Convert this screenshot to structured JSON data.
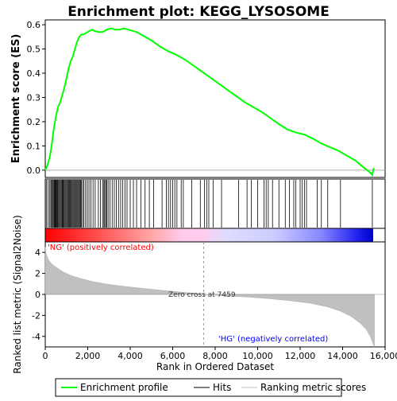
{
  "chart_data": {
    "type": "line",
    "title": "Enrichment plot: KEGG_LYSOSOME",
    "es_panel": {
      "ylabel": "Enrichment score (ES)",
      "ylim": [
        -0.03,
        0.62
      ],
      "yticks": [
        "0.0",
        "0.1",
        "0.2",
        "0.3",
        "0.4",
        "0.5",
        "0.6"
      ],
      "series": [
        {
          "name": "Enrichment profile",
          "color": "#00ff00",
          "points": [
            [
              0,
              0.0
            ],
            [
              100,
              0.02
            ],
            [
              200,
              0.05
            ],
            [
              300,
              0.1
            ],
            [
              400,
              0.17
            ],
            [
              500,
              0.22
            ],
            [
              600,
              0.26
            ],
            [
              700,
              0.28
            ],
            [
              800,
              0.31
            ],
            [
              900,
              0.34
            ],
            [
              1000,
              0.38
            ],
            [
              1100,
              0.42
            ],
            [
              1200,
              0.45
            ],
            [
              1300,
              0.47
            ],
            [
              1400,
              0.5
            ],
            [
              1500,
              0.53
            ],
            [
              1600,
              0.55
            ],
            [
              1700,
              0.56
            ],
            [
              1800,
              0.56
            ],
            [
              1900,
              0.565
            ],
            [
              2000,
              0.57
            ],
            [
              2100,
              0.575
            ],
            [
              2200,
              0.58
            ],
            [
              2300,
              0.575
            ],
            [
              2500,
              0.57
            ],
            [
              2700,
              0.57
            ],
            [
              2900,
              0.58
            ],
            [
              3100,
              0.585
            ],
            [
              3300,
              0.58
            ],
            [
              3500,
              0.58
            ],
            [
              3700,
              0.585
            ],
            [
              3900,
              0.58
            ],
            [
              4100,
              0.575
            ],
            [
              4300,
              0.57
            ],
            [
              4600,
              0.555
            ],
            [
              5000,
              0.535
            ],
            [
              5400,
              0.51
            ],
            [
              5800,
              0.49
            ],
            [
              6200,
              0.475
            ],
            [
              6600,
              0.455
            ],
            [
              7000,
              0.43
            ],
            [
              7400,
              0.405
            ],
            [
              7800,
              0.38
            ],
            [
              8200,
              0.355
            ],
            [
              8600,
              0.33
            ],
            [
              9000,
              0.305
            ],
            [
              9400,
              0.28
            ],
            [
              9800,
              0.26
            ],
            [
              10200,
              0.24
            ],
            [
              10600,
              0.215
            ],
            [
              11000,
              0.19
            ],
            [
              11400,
              0.168
            ],
            [
              11800,
              0.155
            ],
            [
              12200,
              0.147
            ],
            [
              12600,
              0.13
            ],
            [
              13000,
              0.11
            ],
            [
              13400,
              0.095
            ],
            [
              13800,
              0.08
            ],
            [
              14200,
              0.06
            ],
            [
              14600,
              0.04
            ],
            [
              15000,
              0.01
            ],
            [
              15300,
              -0.01
            ],
            [
              15400,
              -0.02
            ],
            [
              15450,
              0.005
            ],
            [
              15500,
              0.005
            ]
          ]
        }
      ]
    },
    "hits_panel": {
      "legend_label": "Hits",
      "positions": [
        50,
        130,
        200,
        260,
        300,
        340,
        380,
        420,
        450,
        480,
        510,
        540,
        570,
        600,
        640,
        680,
        720,
        760,
        800,
        830,
        860,
        900,
        940,
        980,
        1020,
        1060,
        1100,
        1140,
        1180,
        1220,
        1260,
        1300,
        1340,
        1380,
        1420,
        1460,
        1500,
        1540,
        1580,
        1620,
        1660,
        1700,
        1760,
        1820,
        1900,
        1980,
        2060,
        2150,
        2250,
        2350,
        2500,
        2600,
        2700,
        2760,
        2800,
        2850,
        2900,
        2960,
        3050,
        3150,
        3250,
        3350,
        3450,
        3550,
        3650,
        3750,
        3850,
        4000,
        4150,
        4300,
        4500,
        4700,
        4900,
        5100,
        5500,
        5700,
        5800,
        5900,
        6000,
        6100,
        6200,
        6400,
        6500,
        6900,
        7300,
        7500,
        7600,
        7700,
        7900,
        8300,
        9100,
        9500,
        9700,
        10000,
        10300,
        10400,
        10500,
        10700,
        11000,
        11300,
        11500,
        11700,
        11800,
        12000,
        12100,
        12200,
        12300,
        12800,
        13000,
        13300,
        13900,
        15400
      ]
    },
    "metric_panel": {
      "ylabel": "Ranked list metric (Signal2Noise)",
      "ylim": [
        -5,
        5
      ],
      "yticks": [
        "-4",
        "-2",
        "0",
        "2",
        "4"
      ],
      "legend_label": "Ranking metric scores",
      "zero_cross_label": "Zero cross at 7459",
      "zero_cross_x": 7459,
      "pos_label": "'NG' (positively correlated)",
      "neg_label": "'HG' (negatively correlated)",
      "pos_color": "#ff0000",
      "neg_color": "#0000ff",
      "curve": [
        [
          0,
          4.5
        ],
        [
          50,
          3.8
        ],
        [
          150,
          3.3
        ],
        [
          300,
          2.9
        ],
        [
          500,
          2.6
        ],
        [
          800,
          2.2
        ],
        [
          1200,
          1.8
        ],
        [
          1700,
          1.5
        ],
        [
          2300,
          1.2
        ],
        [
          3000,
          0.95
        ],
        [
          3800,
          0.75
        ],
        [
          4700,
          0.55
        ],
        [
          5700,
          0.35
        ],
        [
          6600,
          0.18
        ],
        [
          7459,
          0.0
        ],
        [
          8500,
          -0.15
        ],
        [
          9500,
          -0.25
        ],
        [
          10500,
          -0.4
        ],
        [
          11500,
          -0.6
        ],
        [
          12500,
          -0.85
        ],
        [
          13300,
          -1.2
        ],
        [
          13900,
          -1.6
        ],
        [
          14400,
          -2.1
        ],
        [
          14800,
          -2.7
        ],
        [
          15100,
          -3.3
        ],
        [
          15300,
          -4.0
        ],
        [
          15450,
          -4.8
        ],
        [
          15500,
          -5.0
        ]
      ]
    },
    "x_axis": {
      "label": "Rank in Ordered Dataset",
      "xlim": [
        0,
        16000
      ],
      "ticks": [
        "0",
        "2,000",
        "4,000",
        "6,000",
        "8,000",
        "10,000",
        "12,000",
        "14,000",
        "16,000"
      ]
    },
    "legend": {
      "placement": "bottom",
      "items": [
        {
          "label": "Enrichment profile",
          "color": "#00ff00"
        },
        {
          "label": "Hits",
          "color": "#000000"
        },
        {
          "label": "Ranking metric scores",
          "color": "#c0c0c0"
        }
      ]
    }
  }
}
